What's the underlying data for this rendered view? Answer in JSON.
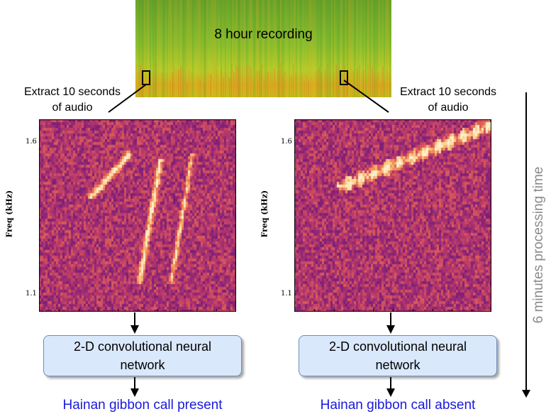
{
  "recording": {
    "label": "8 hour recording"
  },
  "extract": {
    "left": "Extract 10 seconds\nof audio",
    "right": "Extract 10 seconds\nof audio"
  },
  "spectrogram": {
    "ylabel": "Freq (kHz)",
    "ticks": [
      "1.6",
      "1.1"
    ]
  },
  "cnn": {
    "left": "2-D convolutional neural network",
    "right": "2-D convolutional neural network"
  },
  "results": {
    "present": "Hainan gibbon call present",
    "absent": "Hainan gibbon call absent"
  },
  "timeline": {
    "label": "6 minutes processing time"
  },
  "colors": {
    "result_text": "#1a1adc",
    "box_fill": "#dae8fc",
    "box_border": "#6c8ebf",
    "time_text": "#8a8a8a"
  }
}
